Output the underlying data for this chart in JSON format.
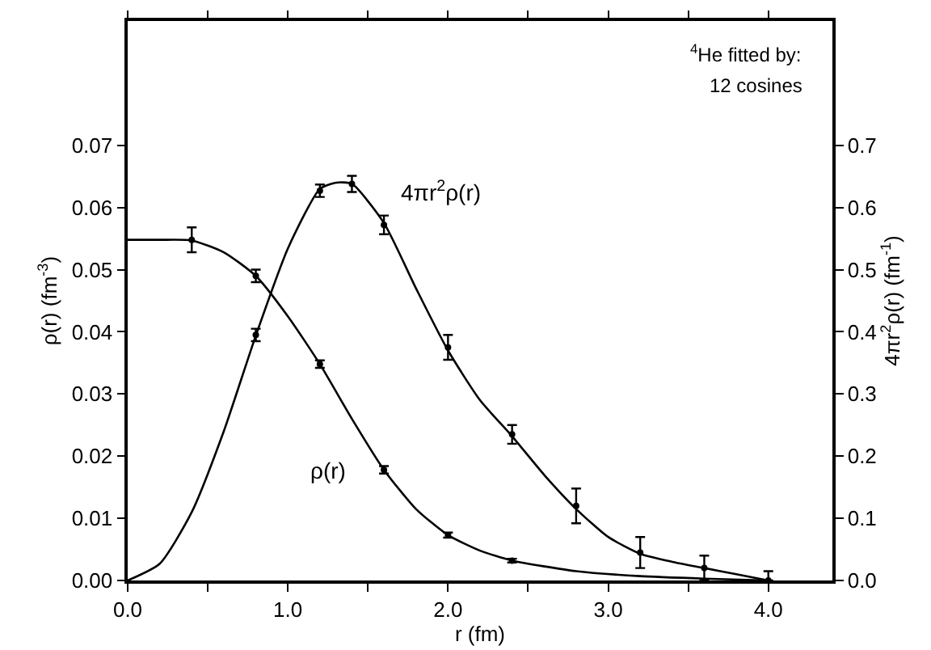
{
  "chart_data": {
    "type": "line",
    "xlabel": "r (fm)",
    "ylabel": "ρ(r) (fm$^{-3}$)",
    "y2label": "4πr$^{2}$ρ(r) (fm$^{-1}$)",
    "annotations": [
      "$^{4}$He fitted by:",
      "12 cosines"
    ],
    "xlim": [
      0,
      4.4
    ],
    "xticks": [
      {
        "value": 0,
        "label": "0.0"
      },
      {
        "value": 0.5,
        "label": null
      },
      {
        "value": 1,
        "label": "1.0"
      },
      {
        "value": 1.5,
        "label": null
      },
      {
        "value": 2,
        "label": "2.0"
      },
      {
        "value": 2.5,
        "label": null
      },
      {
        "value": 3,
        "label": "3.0"
      },
      {
        "value": 3.5,
        "label": null
      },
      {
        "value": 4,
        "label": "4.0"
      }
    ],
    "ylim": [
      0,
      0.09
    ],
    "yticks": [
      {
        "value": 0,
        "label": "0.00"
      },
      0.01,
      0.02,
      0.03,
      0.04,
      0.05,
      0.06,
      0.07
    ],
    "y2lim": [
      0,
      0.9
    ],
    "y2ticks": [
      {
        "value": 0,
        "label": "0.0"
      },
      0.1,
      0.2,
      0.3,
      0.4,
      0.5,
      0.6,
      0.7
    ],
    "line_style": "solid",
    "series": [
      {
        "name": "ρ(r)",
        "color": "#000000",
        "x": [
          0,
          0.2,
          0.4,
          0.6,
          0.8,
          1.0,
          1.2,
          1.4,
          1.6,
          1.8,
          2.0,
          2.2,
          2.4,
          2.8,
          3.2,
          3.6,
          4.0
        ],
        "values": [
          0.0548,
          0.0548,
          0.0547,
          0.0528,
          0.049,
          0.0425,
          0.0348,
          0.026,
          0.0178,
          0.0115,
          0.0073,
          0.0048,
          0.0032,
          0.0015,
          0.0007,
          0.0003,
          0.0
        ]
      },
      {
        "name": "4πr$^{2}$ρ(r)",
        "axis": "y2",
        "color": "#000000",
        "x": [
          0,
          0.2,
          0.4,
          0.6,
          0.8,
          1.0,
          1.2,
          1.3,
          1.4,
          1.6,
          1.8,
          2.0,
          2.2,
          2.4,
          2.6,
          2.8,
          3.0,
          3.2,
          3.4,
          3.6,
          3.8,
          4.0
        ],
        "values": [
          0,
          0.027,
          0.11,
          0.24,
          0.394,
          0.534,
          0.63,
          0.64,
          0.638,
          0.575,
          0.47,
          0.37,
          0.29,
          0.232,
          0.17,
          0.115,
          0.07,
          0.043,
          0.03,
          0.02,
          0.01,
          0.0
        ]
      },
      {
        "type": "scatter",
        "color": "#000000",
        "x": [
          0.4,
          0.8,
          1.2,
          1.6,
          2.0,
          2.4
        ],
        "values": [
          0.0548,
          0.049,
          0.0348,
          0.0178,
          0.0073,
          0.0032
        ],
        "errors": [
          0.002,
          0.001,
          0.0006,
          0.0006,
          0.0004,
          0.0003
        ]
      },
      {
        "type": "scatter",
        "axis": "y2",
        "color": "#000000",
        "x": [
          0.8,
          1.2,
          1.4,
          1.6,
          2.0,
          2.4,
          2.8,
          3.2,
          3.6,
          4.0
        ],
        "values": [
          0.395,
          0.627,
          0.638,
          0.572,
          0.375,
          0.235,
          0.12,
          0.045,
          0.02,
          0.0
        ],
        "errors": [
          0.01,
          0.01,
          0.013,
          0.015,
          0.02,
          0.015,
          0.028,
          0.025,
          0.02,
          [
            0.0,
            0.015
          ]
        ]
      }
    ]
  }
}
